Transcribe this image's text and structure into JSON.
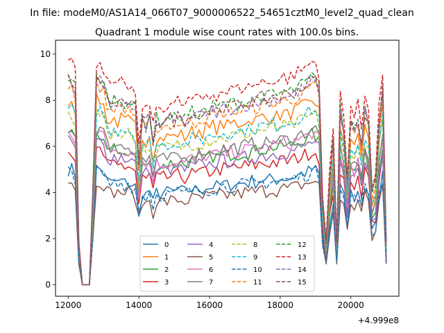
{
  "chart_data": {
    "type": "line",
    "suptitle": "In file: modeM0/AS1A14_066T07_9000006522_54651cztM0_level2_quad_clean",
    "title": "Quadrant 1 module wise count rates with 100.0s bins.",
    "xlabel": "",
    "ylabel": "",
    "offset_text": "+4.999e8",
    "xlim": [
      11640,
      21360
    ],
    "ylim": [
      -0.5,
      10.6
    ],
    "xticks": [
      12000,
      14000,
      16000,
      18000,
      20000
    ],
    "yticks": [
      0,
      2,
      4,
      6,
      8,
      10
    ],
    "grid": false,
    "legend_position": "lower center",
    "x": [
      12000,
      12100,
      12200,
      12300,
      12400,
      12500,
      12600,
      12700,
      12800,
      12900,
      13000,
      13100,
      13200,
      13300,
      13400,
      13500,
      13600,
      13700,
      13800,
      13900,
      14000,
      14100,
      14200,
      14300,
      14400,
      14500,
      14600,
      14700,
      14800,
      14900,
      15000,
      15100,
      15200,
      15300,
      15400,
      15500,
      15600,
      15700,
      15800,
      15900,
      16000,
      16100,
      16200,
      16300,
      16400,
      16500,
      16600,
      16700,
      16800,
      16900,
      17000,
      17100,
      17200,
      17300,
      17400,
      17500,
      17600,
      17700,
      17800,
      17900,
      18000,
      18100,
      18200,
      18300,
      18400,
      18500,
      18600,
      18700,
      18800,
      18900,
      19000,
      19100,
      19200,
      19300,
      19400,
      19500,
      19600,
      19700,
      19800,
      19900,
      20000,
      20100,
      20200,
      20300,
      20400,
      20500,
      20600,
      20700,
      20800,
      20900,
      21000
    ],
    "base_profile": [
      1,
      1,
      0.95,
      0.2,
      0,
      0,
      0,
      0.45,
      1,
      1,
      0.97,
      0.9,
      0.88,
      0.9,
      0.88,
      0.9,
      0.88,
      0.89,
      0.87,
      0.85,
      0.6,
      0.8,
      0.78,
      0.82,
      0.7,
      0.8,
      0.79,
      0.8,
      0.8,
      0.81,
      0.8,
      0.82,
      0.81,
      0.8,
      0.82,
      0.83,
      0.82,
      0.84,
      0.83,
      0.85,
      0.84,
      0.86,
      0.85,
      0.86,
      0.87,
      0.86,
      0.87,
      0.88,
      0.87,
      0.88,
      0.89,
      0.88,
      0.9,
      0.89,
      0.9,
      0.91,
      0.9,
      0.91,
      0.92,
      0.91,
      0.92,
      0.93,
      0.92,
      0.93,
      0.94,
      0.95,
      0.96,
      0.97,
      0.98,
      1,
      0.99,
      0.95,
      0.4,
      0.2,
      0.5,
      0.7,
      0.2,
      0.85,
      0.75,
      0.5,
      0.8,
      0.75,
      0.8,
      0.7,
      0.85,
      0.8,
      0.45,
      0.5,
      0.8,
      0.95,
      0.2
    ],
    "series": [
      {
        "name": "0",
        "style": "solid",
        "color": "#1f77b4",
        "level": 5.0
      },
      {
        "name": "1",
        "style": "solid",
        "color": "#ff7f0e",
        "level": 8.0
      },
      {
        "name": "2",
        "style": "solid",
        "color": "#2ca02c",
        "level": 6.5
      },
      {
        "name": "3",
        "style": "solid",
        "color": "#d62728",
        "level": 5.8
      },
      {
        "name": "4",
        "style": "solid",
        "color": "#9467bd",
        "level": 6.2
      },
      {
        "name": "5",
        "style": "solid",
        "color": "#8c564b",
        "level": 4.5
      },
      {
        "name": "6",
        "style": "solid",
        "color": "#e377c2",
        "level": 6.6
      },
      {
        "name": "7",
        "style": "solid",
        "color": "#7f7f7f",
        "level": 6.8
      },
      {
        "name": "8",
        "style": "dashed",
        "color": "#bcbd22",
        "level": 7.4
      },
      {
        "name": "9",
        "style": "dashed",
        "color": "#17becf",
        "level": 7.6
      },
      {
        "name": "10",
        "style": "dashed",
        "color": "#1f77b4",
        "level": 4.9
      },
      {
        "name": "11",
        "style": "dashed",
        "color": "#ff7f0e",
        "level": 8.6
      },
      {
        "name": "12",
        "style": "dashed",
        "color": "#2ca02c",
        "level": 9.0
      },
      {
        "name": "13",
        "style": "dashed",
        "color": "#d62728",
        "level": 9.7
      },
      {
        "name": "14",
        "style": "dashed",
        "color": "#9467bd",
        "level": 8.8
      },
      {
        "name": "15",
        "style": "dashed",
        "color": "#8c564b",
        "level": 8.9
      }
    ]
  }
}
